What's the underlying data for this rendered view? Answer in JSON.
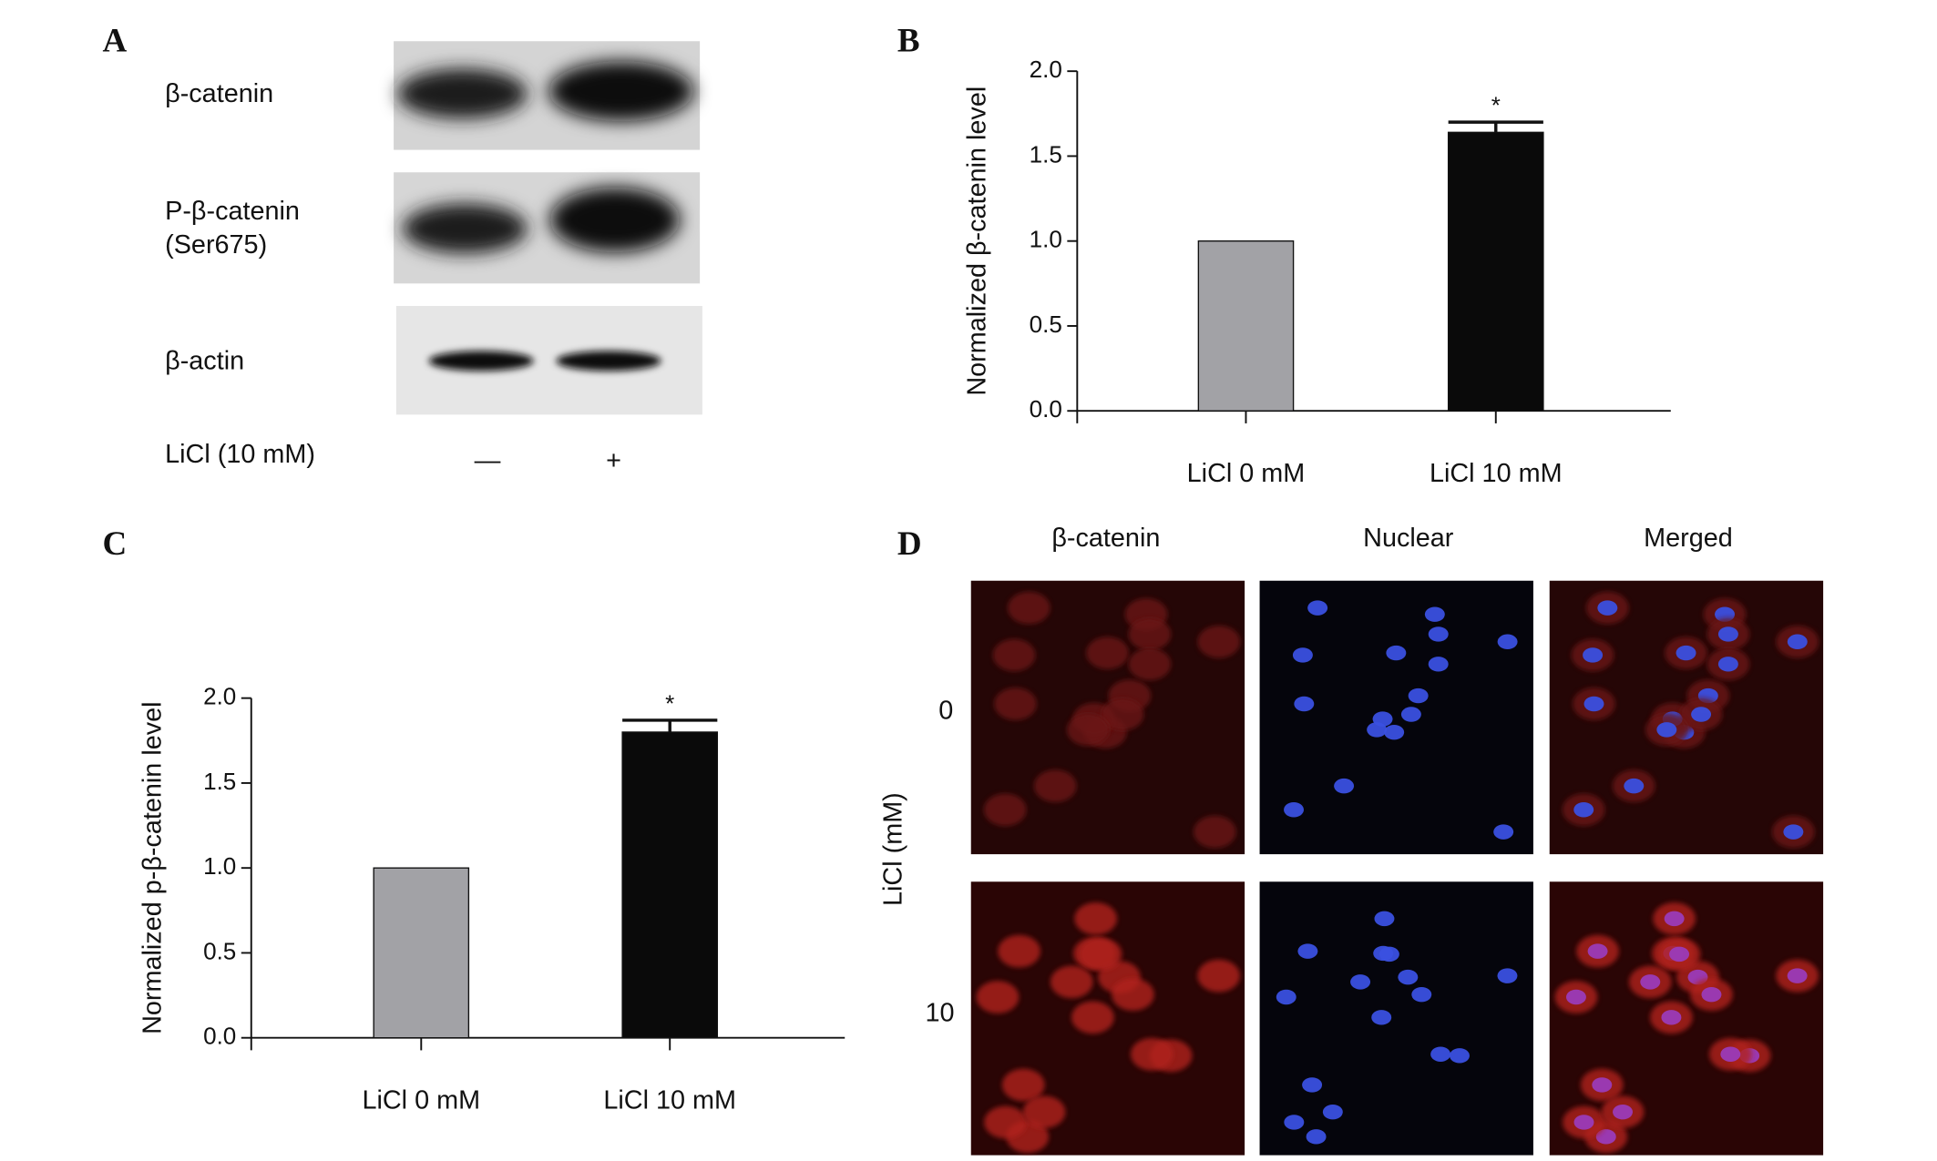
{
  "panel_labels": [
    "A",
    "B",
    "C",
    "D"
  ],
  "blot": {
    "rows": [
      [
        "β-catenin"
      ],
      [
        "P-β-catenin",
        "(Ser675)"
      ],
      [
        "β-actin"
      ]
    ],
    "treatment": "LiCl (10 mM)",
    "lanes": [
      "—",
      "+"
    ]
  },
  "chart_data": [
    {
      "type": "bar",
      "y_label": "Normalized β-catenin level",
      "categories": [
        "LiCl 0 mM",
        "LiCl 10 mM"
      ],
      "values": [
        1.0,
        1.64
      ],
      "errors": [
        null,
        0.06
      ],
      "significance": [
        null,
        "*"
      ],
      "colors": [
        "#a2a2a6",
        "#0a0a0a"
      ],
      "ylim": [
        0,
        2
      ],
      "yticks": [
        {
          "value": 0,
          "label": "0.0"
        },
        0.5,
        {
          "value": 1,
          "label": "1.0"
        },
        1.5,
        {
          "value": 2,
          "label": "2.0"
        }
      ]
    },
    {
      "type": "bar",
      "y_label": "Normalized p-β-catenin level",
      "categories": [
        "LiCl 0 mM",
        "LiCl 10 mM"
      ],
      "values": [
        1.0,
        1.8
      ],
      "errors": [
        null,
        0.07
      ],
      "significance": [
        null,
        "*"
      ],
      "colors": [
        "#a2a2a6",
        "#0a0a0a"
      ],
      "ylim": [
        0,
        2
      ],
      "yticks": [
        {
          "value": 0,
          "label": "0.0"
        },
        0.5,
        {
          "value": 1,
          "label": "1.0"
        },
        1.5,
        {
          "value": 2,
          "label": "2.0"
        }
      ]
    }
  ],
  "microscopy": {
    "columns": [
      "β-catenin",
      "Nuclear",
      "Merged"
    ],
    "row_axis_label": "LiCl (mM)",
    "rows": [
      "0",
      "10"
    ]
  }
}
